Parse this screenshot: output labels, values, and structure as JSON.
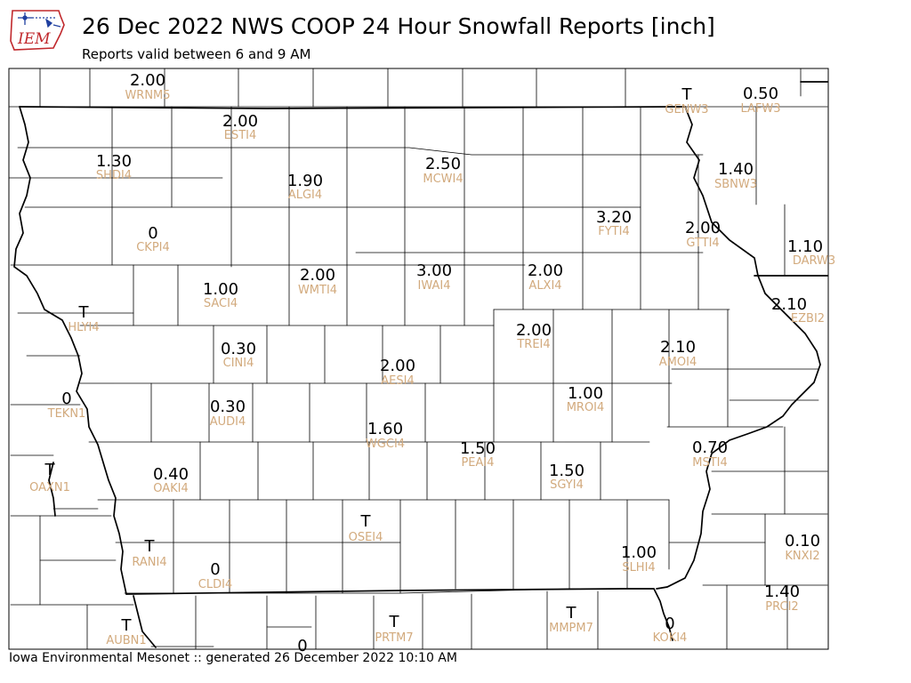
{
  "header": {
    "logo_text": "IEM",
    "title": "26 Dec 2022 NWS COOP 24 Hour Snowfall Reports [inch]",
    "subtitle": "Reports valid between 6 and 9 AM"
  },
  "footer": {
    "text": "Iowa Environmental Mesonet :: generated 26 December 2022 10:10 AM"
  },
  "colors": {
    "value": "#000000",
    "station_id": "#d2aa7d",
    "county_lines": "#000000",
    "logo_red": "#c0282c",
    "logo_blue": "#2040a0"
  },
  "stations": [
    {
      "id": "WRNM5",
      "value": "2.00"
    },
    {
      "id": "GENW3",
      "value": "T"
    },
    {
      "id": "LAFW3",
      "value": "0.50"
    },
    {
      "id": "ESTI4",
      "value": "2.00"
    },
    {
      "id": "SHDI4",
      "value": "1.30"
    },
    {
      "id": "ALGI4",
      "value": "1.90"
    },
    {
      "id": "MCWI4",
      "value": "2.50"
    },
    {
      "id": "SBNW3",
      "value": "1.40"
    },
    {
      "id": "CKPI4",
      "value": "0"
    },
    {
      "id": "FYTI4",
      "value": "3.20"
    },
    {
      "id": "GTTI4",
      "value": "2.00"
    },
    {
      "id": "DARW3",
      "value": "1.10"
    },
    {
      "id": "SACI4",
      "value": "1.00"
    },
    {
      "id": "WMTI4",
      "value": "2.00"
    },
    {
      "id": "IWAI4",
      "value": "3.00"
    },
    {
      "id": "ALXI4",
      "value": "2.00"
    },
    {
      "id": "EZBI2",
      "value": "2.10"
    },
    {
      "id": "HLYI4",
      "value": "T"
    },
    {
      "id": "TREI4",
      "value": "2.00"
    },
    {
      "id": "AMOI4",
      "value": "2.10"
    },
    {
      "id": "CINI4",
      "value": "0.30"
    },
    {
      "id": "AESI4",
      "value": "2.00"
    },
    {
      "id": "TEKN1",
      "value": "0"
    },
    {
      "id": "MROI4",
      "value": "1.00"
    },
    {
      "id": "AUDI4",
      "value": "0.30"
    },
    {
      "id": "WGCI4",
      "value": "1.60"
    },
    {
      "id": "PEAI4",
      "value": "1.50"
    },
    {
      "id": "MSTI4",
      "value": "0.70"
    },
    {
      "id": "OAXN1",
      "value": "T"
    },
    {
      "id": "OAKI4",
      "value": "0.40"
    },
    {
      "id": "SGYI4",
      "value": "1.50"
    },
    {
      "id": "OSEI4",
      "value": "T"
    },
    {
      "id": "KNXI2",
      "value": "0.10"
    },
    {
      "id": "RANI4",
      "value": "T"
    },
    {
      "id": "CLDI4",
      "value": "0"
    },
    {
      "id": "SLHI4",
      "value": "1.00"
    },
    {
      "id": "PRCI2",
      "value": "1.40"
    },
    {
      "id": "PRTM7",
      "value": "T"
    },
    {
      "id": "MMPM7",
      "value": "T"
    },
    {
      "id": "AUBN1",
      "value": "T"
    },
    {
      "id": "KOKI4",
      "value": "0"
    },
    {
      "id": "",
      "value": "0"
    }
  ]
}
